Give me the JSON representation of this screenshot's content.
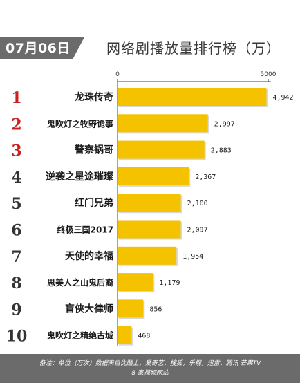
{
  "header": {
    "date": "07月06日",
    "title": "网络剧播放量排行榜（万）"
  },
  "chart_data": {
    "type": "bar",
    "orientation": "horizontal",
    "title": "网络剧播放量排行榜（万）",
    "xlim": [
      0,
      5000
    ],
    "ticks": [
      {
        "value": 0,
        "label": "0"
      },
      {
        "value": 5000,
        "label": "5000"
      }
    ],
    "grid": false,
    "bar_color": "#f5c200",
    "rank_colors": {
      "top3": "#cc1f1f",
      "rest": "#333333"
    },
    "rows": [
      {
        "rank": "1",
        "name": "龙珠传奇",
        "value": 4942,
        "label": "4,942"
      },
      {
        "rank": "2",
        "name": "鬼吹灯之牧野诡事",
        "value": 2997,
        "label": "2,997"
      },
      {
        "rank": "3",
        "name": "警察锅哥",
        "value": 2883,
        "label": "2,883"
      },
      {
        "rank": "4",
        "name": "逆袭之星途璀璨",
        "value": 2367,
        "label": "2,367"
      },
      {
        "rank": "5",
        "name": "红门兄弟",
        "value": 2100,
        "label": "2,100"
      },
      {
        "rank": "6",
        "name": "终极三国2017",
        "value": 2097,
        "label": "2,097"
      },
      {
        "rank": "7",
        "name": "天使的幸福",
        "value": 1954,
        "label": "1,954"
      },
      {
        "rank": "8",
        "name": "思美人之山鬼后裔",
        "value": 1179,
        "label": "1,179"
      },
      {
        "rank": "9",
        "name": "盲侠大律师",
        "value": 856,
        "label": "856"
      },
      {
        "rank": "10",
        "name": "鬼吹灯之精绝古城",
        "value": 468,
        "label": "468"
      }
    ]
  },
  "footer": {
    "line1": "备注：单位（万次）数据来自优酷土，爱奇艺，搜狐，乐视，迅雷，腾讯 芒果TV",
    "line2": "8 家视频网站"
  }
}
